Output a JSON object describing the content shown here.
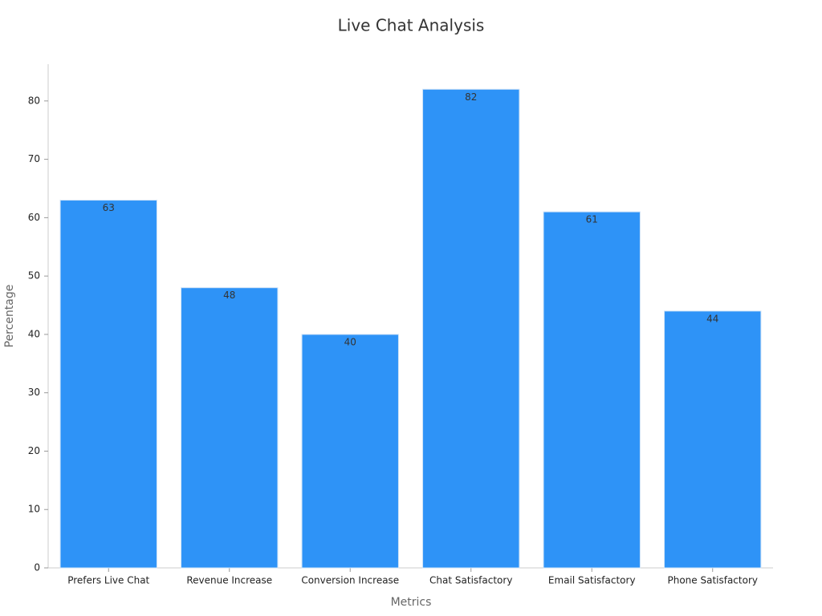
{
  "chart_data": {
    "type": "bar",
    "title": "Live Chat Analysis",
    "xlabel": "Metrics",
    "ylabel": "Percentage",
    "categories": [
      "Prefers Live Chat",
      "Revenue Increase",
      "Conversion Increase",
      "Chat Satisfactory",
      "Email Satisfactory",
      "Phone Satisfactory"
    ],
    "values": [
      63,
      48,
      40,
      82,
      61,
      44
    ],
    "color": "#2e93f7",
    "ylim": [
      0,
      86.3
    ],
    "yticks": [
      0,
      10,
      20,
      30,
      40,
      50,
      60,
      70,
      80
    ],
    "grid": false
  }
}
